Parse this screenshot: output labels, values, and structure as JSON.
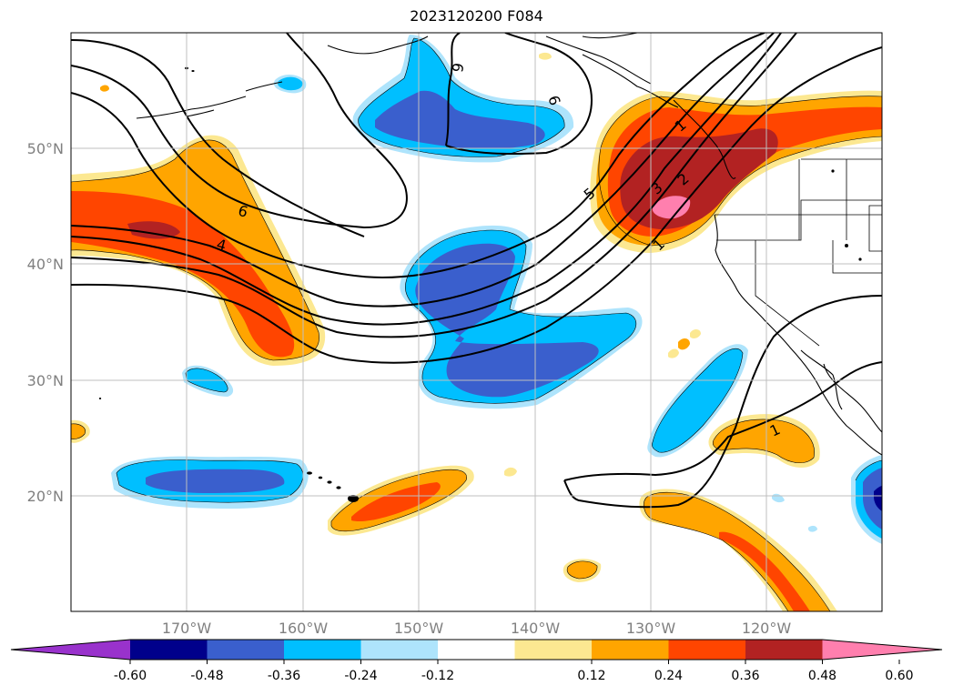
{
  "title": "2023120200 F084",
  "lon_ticks": [
    "170°W",
    "160°W",
    "150°W",
    "140°W",
    "130°W",
    "120°W"
  ],
  "lat_ticks": [
    "50°N",
    "40°N",
    "30°N",
    "20°N"
  ],
  "contour_labels": [
    "6",
    "6",
    "6",
    "4",
    "5",
    "3",
    "2",
    "1",
    "1",
    "1"
  ],
  "colorbar": {
    "tick_labels": [
      "-0.60",
      "-0.48",
      "-0.36",
      "-0.24",
      "-0.12",
      "0.12",
      "0.24",
      "0.36",
      "0.48",
      "0.60"
    ],
    "colors": [
      "#9932cc",
      "#00008b",
      "#3a5fcd",
      "#00bfff",
      "#aee4fc",
      "#ffffff",
      "#fce891",
      "#ffa500",
      "#ff4500",
      "#b22222",
      "#ff7fae"
    ]
  },
  "fill_colors": {
    "neg1": "#aee4fc",
    "neg2": "#00bfff",
    "neg3": "#3a5fcd",
    "neg4": "#00008b",
    "pos1": "#fce891",
    "pos2": "#ffa500",
    "pos3": "#ff4500",
    "pos4": "#b22222",
    "pos5": "#ff7fae"
  }
}
